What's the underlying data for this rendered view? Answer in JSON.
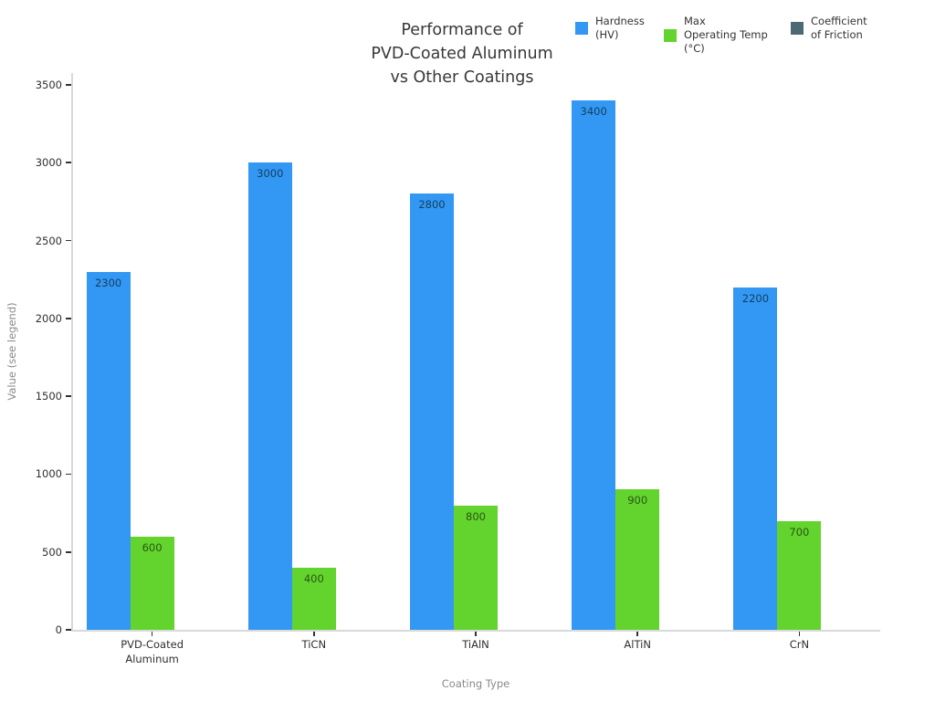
{
  "chart_data": {
    "type": "bar",
    "title": "Performance of\nPVD-Coated Aluminum\nvs Other Coatings",
    "xlabel": "Coating Type",
    "ylabel": "Value (see legend)",
    "categories": [
      "PVD-Coated\nAluminum",
      "TiCN",
      "TiAlN",
      "AlTiN",
      "CrN"
    ],
    "series": [
      {
        "name": "Hardness\n(HV)",
        "color": "#3298f3",
        "values": [
          2300,
          3000,
          2800,
          3400,
          2200
        ]
      },
      {
        "name": "Max\nOperating Temp\n(°C)",
        "color": "#62d42d",
        "values": [
          600,
          400,
          800,
          900,
          700
        ]
      },
      {
        "name": "Coefficient\nof Friction",
        "color": "#4d6a74",
        "values": [
          null,
          null,
          null,
          null,
          null
        ]
      }
    ],
    "ylim": [
      0,
      3500
    ],
    "yticks": [
      0,
      500,
      1000,
      1500,
      2000,
      2500,
      3000,
      3500
    ],
    "bar_labels": true,
    "legend_position": "top-right",
    "grid": false
  }
}
